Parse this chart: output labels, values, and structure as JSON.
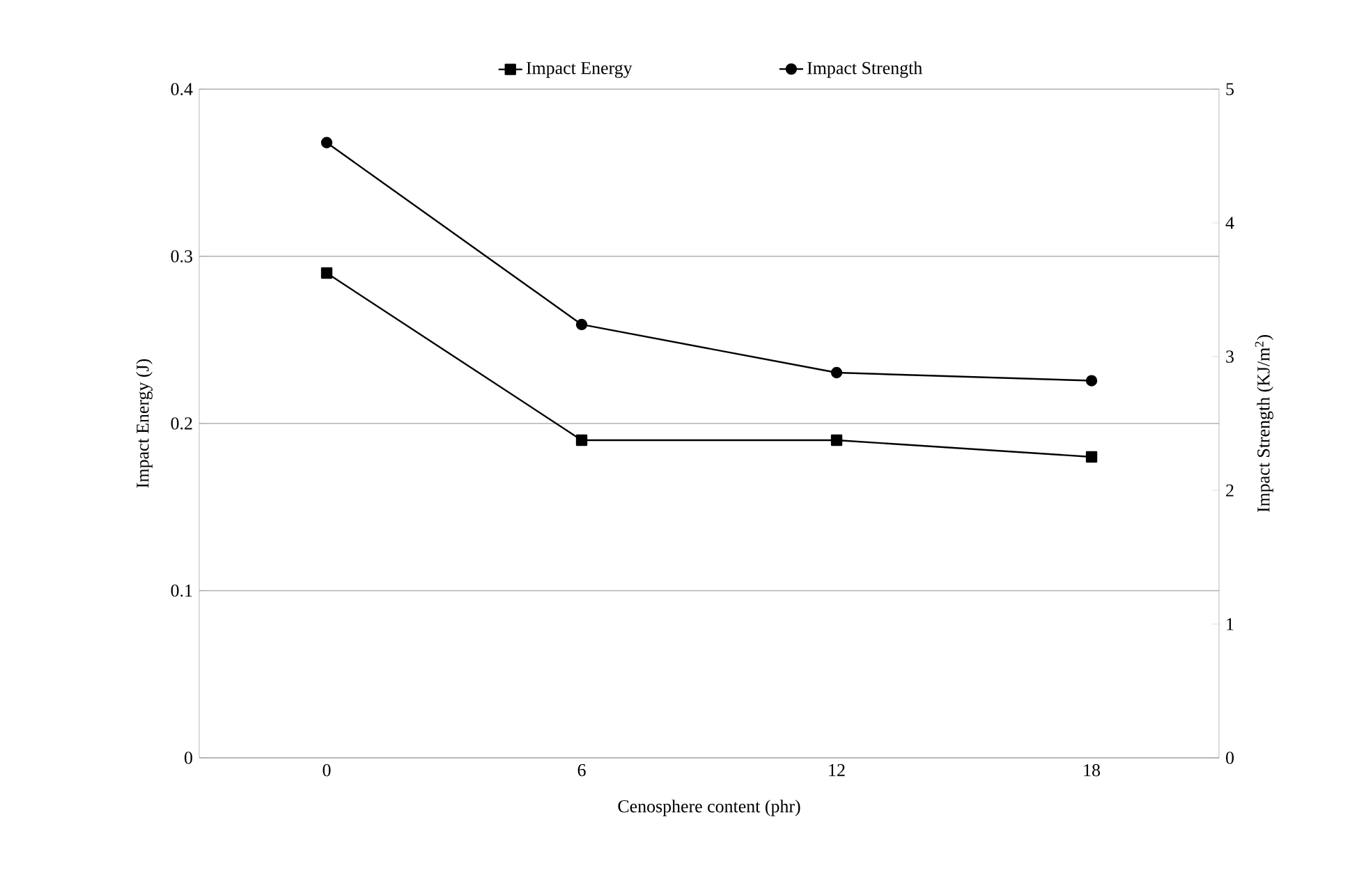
{
  "chart_data": {
    "type": "line",
    "xlabel": "Cenosphere content (phr)",
    "ylabel": "Impact Energy (J)",
    "y2label": "Impact Strength (KJ/m$^{2}$)",
    "categories": [
      "0",
      "6",
      "12",
      "18"
    ],
    "series": [
      {
        "name": "Impact Energy",
        "color": "#000000",
        "marker": "square",
        "values": [
          0.29,
          0.19,
          0.19,
          0.18
        ]
      },
      {
        "name": "Impact Strength",
        "color": "#000000",
        "marker": "circle",
        "axis": "y2",
        "values": [
          4.6,
          3.24,
          2.88,
          2.82
        ]
      }
    ],
    "ylim": [
      0,
      0.4
    ],
    "yticks": [
      0,
      0.1,
      0.2,
      0.3,
      0.4
    ],
    "y2lim": [
      0,
      5
    ],
    "y2ticks": [
      0,
      1,
      2,
      3,
      4,
      5
    ],
    "grid": "y",
    "legend": "top",
    "line_style": "solid"
  }
}
